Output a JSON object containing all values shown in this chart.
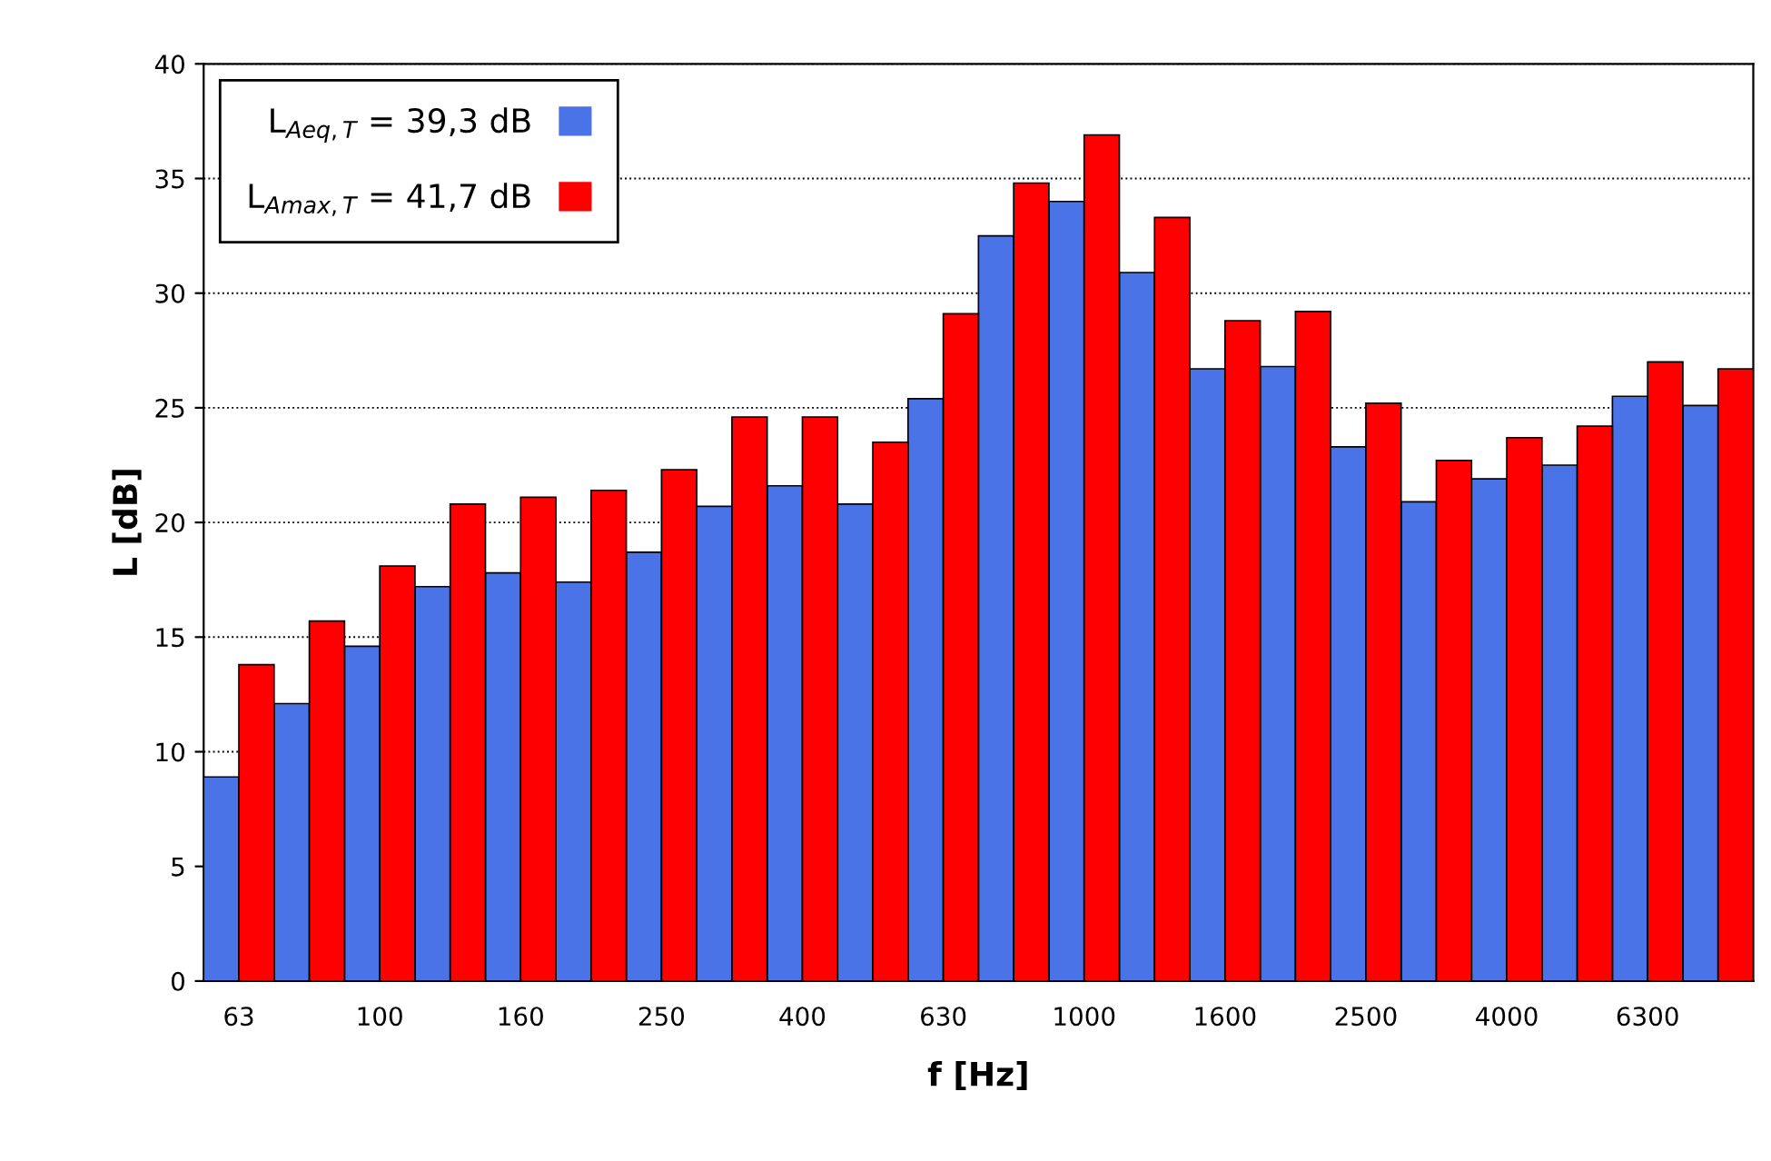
{
  "chart_data": {
    "type": "bar",
    "xlabel": "f [Hz]",
    "ylabel": "L [dB]",
    "categories": [
      "63",
      null,
      "100",
      null,
      "160",
      null,
      "250",
      null,
      "400",
      null,
      "630",
      null,
      "1000",
      null,
      "1600",
      null,
      "2500",
      null,
      "4000",
      null,
      "6300",
      null
    ],
    "series": [
      {
        "name": "L$_{Aeq,T}$ = 39,3 dB",
        "color": "#4a73e8",
        "values": [
          8.9,
          12.1,
          14.6,
          17.2,
          17.8,
          17.4,
          18.7,
          20.7,
          21.6,
          20.8,
          25.4,
          32.5,
          34.0,
          30.9,
          26.7,
          26.8,
          23.3,
          20.9,
          21.9,
          22.5,
          25.5,
          25.1
        ]
      },
      {
        "name": "L$_{Amax,T}$ = 41,7 dB",
        "color": "#ff0000",
        "values": [
          13.8,
          15.7,
          18.1,
          20.8,
          21.1,
          21.4,
          22.3,
          24.6,
          24.6,
          23.5,
          29.1,
          34.8,
          36.9,
          33.3,
          28.8,
          29.2,
          25.2,
          22.7,
          23.7,
          24.2,
          27.0,
          26.7
        ]
      }
    ],
    "ylim": [
      0,
      40
    ],
    "yticks": [
      0,
      5,
      10,
      15,
      20,
      25,
      30,
      35,
      40
    ],
    "grid": "y",
    "legend": "top left"
  }
}
